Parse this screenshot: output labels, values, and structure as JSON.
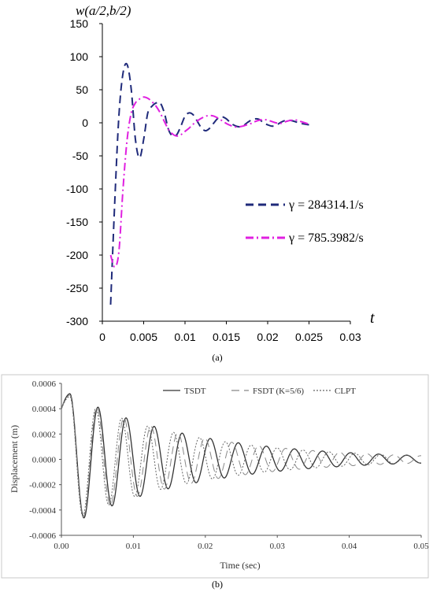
{
  "chart_data": [
    {
      "type": "line",
      "panel_label": "(a)",
      "title": "",
      "ylabel": "w(a/2,b/2)",
      "xlabel": "t",
      "xlim": [
        0,
        0.03
      ],
      "ylim": [
        -300,
        150
      ],
      "x_ticks": [
        "0",
        "0.005",
        "0.01",
        "0.015",
        "0.02",
        "0.025",
        "0.03"
      ],
      "y_ticks": [
        "150",
        "100",
        "50",
        "0",
        "-50",
        "-100",
        "-150",
        "-200",
        "-250",
        "-300"
      ],
      "grid": false,
      "legend_position": "right-middle",
      "series": [
        {
          "name": "γ = 284314.1/s",
          "color": "#1f2a7a",
          "style": "dashed",
          "x": [
            0.001,
            0.0015,
            0.002,
            0.0025,
            0.003,
            0.0035,
            0.004,
            0.0045,
            0.005,
            0.0055,
            0.006,
            0.0065,
            0.007,
            0.0075,
            0.008,
            0.0085,
            0.009,
            0.0095,
            0.01,
            0.0105,
            0.011,
            0.0115,
            0.012,
            0.0125,
            0.013,
            0.0135,
            0.014,
            0.0145,
            0.015,
            0.0155,
            0.016,
            0.0165,
            0.017,
            0.0175,
            0.018,
            0.0185,
            0.019,
            0.0195,
            0.02,
            0.0205,
            0.021,
            0.0215,
            0.022,
            0.0225,
            0.023,
            0.0235,
            0.024,
            0.0245,
            0.025
          ],
          "y": [
            -275,
            -120,
            10,
            75,
            88,
            50,
            -25,
            -53,
            -25,
            15,
            25,
            30,
            30,
            15,
            -10,
            -20,
            -18,
            -5,
            10,
            15,
            12,
            2,
            -8,
            -12,
            -8,
            0,
            7,
            9,
            6,
            0,
            -4,
            -6,
            -5,
            0,
            4,
            6,
            5,
            0,
            -3,
            -5,
            -4,
            0,
            3,
            4,
            3,
            1,
            -1,
            -2,
            -3
          ]
        },
        {
          "name": "γ = 785.3982/s",
          "color": "#e020e0",
          "style": "dash-dot",
          "x": [
            0.001,
            0.0015,
            0.002,
            0.0025,
            0.003,
            0.0035,
            0.004,
            0.0045,
            0.005,
            0.0055,
            0.006,
            0.0065,
            0.007,
            0.0075,
            0.008,
            0.0085,
            0.009,
            0.0095,
            0.01,
            0.0105,
            0.011,
            0.0115,
            0.012,
            0.0125,
            0.013,
            0.0135,
            0.014,
            0.0145,
            0.015,
            0.0155,
            0.016,
            0.0165,
            0.017,
            0.0175,
            0.018,
            0.0185,
            0.019,
            0.0195,
            0.02,
            0.0205,
            0.021,
            0.0215,
            0.022,
            0.0225,
            0.023,
            0.0235,
            0.024,
            0.0245,
            0.025
          ],
          "y": [
            -200,
            -218,
            -195,
            -100,
            -25,
            15,
            30,
            36,
            39,
            37,
            32,
            25,
            15,
            2,
            -10,
            -17,
            -20,
            -18,
            -13,
            -8,
            -2,
            3,
            7,
            10,
            11,
            10,
            7,
            3,
            -1,
            -4,
            -6,
            -6,
            -5,
            -3,
            -1,
            2,
            4,
            5,
            4,
            2,
            0,
            -1,
            1,
            3,
            4,
            4,
            2,
            0,
            -2
          ]
        }
      ]
    },
    {
      "type": "line",
      "panel_label": "(b)",
      "title": "",
      "ylabel": "Displacement (m)",
      "xlabel": "Time (sec)",
      "xlim": [
        0,
        0.05
      ],
      "ylim": [
        -0.0006,
        0.0006
      ],
      "x_ticks": [
        "0.00",
        "0.01",
        "0.02",
        "0.03",
        "0.04",
        "0.05"
      ],
      "y_ticks": [
        "0.0006",
        "0.0004",
        "0.0002",
        "0.0000",
        "-0.0002",
        "-0.0004",
        "-0.0006"
      ],
      "grid": false,
      "legend_position": "top",
      "series": [
        {
          "name": "TSDT",
          "color": "#333333",
          "style": "solid",
          "x0": 0.0,
          "x1": 0.05,
          "y0": 0.0004,
          "amplitude": 0.00048,
          "period": 0.0039,
          "decay": 0.017,
          "phase_lag": 0.0
        },
        {
          "name": "FSDT (K=5/6)",
          "color": "#888888",
          "style": "dashed",
          "x0": 0.0,
          "x1": 0.05,
          "y0": 0.0004,
          "amplitude": 0.00047,
          "period": 0.00375,
          "decay": 0.017,
          "phase_lag": 0.0
        },
        {
          "name": "CLPT",
          "color": "#666666",
          "style": "dotted",
          "x0": 0.0,
          "x1": 0.05,
          "y0": 0.0004,
          "amplitude": 0.00046,
          "period": 0.0036,
          "decay": 0.017,
          "phase_lag": 0.0
        }
      ]
    }
  ]
}
